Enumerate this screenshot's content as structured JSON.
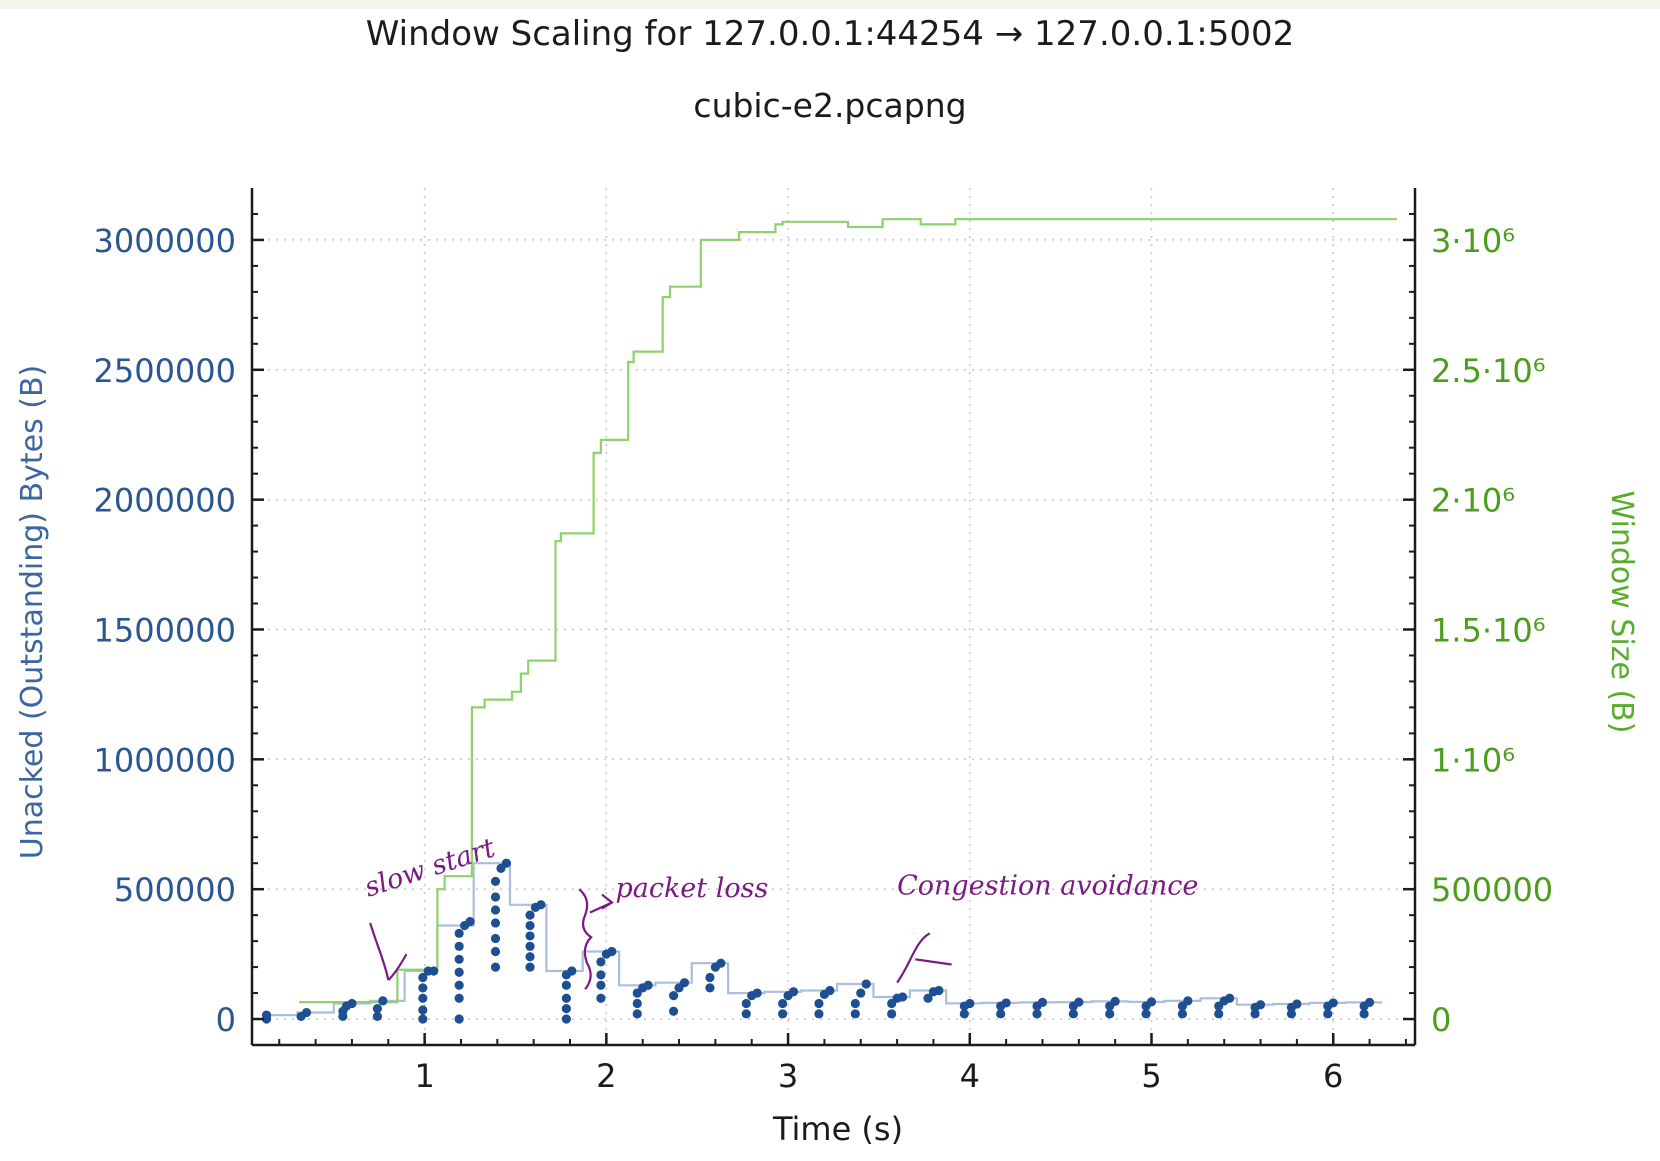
{
  "chart_data": {
    "type": "line",
    "title": "Window Scaling for 127.0.0.1:44254 → 127.0.0.1:5002",
    "subtitle": "cubic-e2.pcapng",
    "xlabel": "Time (s)",
    "ylabel": "Unacked (Outstanding) Bytes (B)",
    "y2label": "Window Size (B)",
    "xlim": [
      0.05,
      6.45
    ],
    "ylim": [
      -100000,
      3200000
    ],
    "xticks": [
      1,
      2,
      3,
      4,
      5,
      6
    ],
    "xtick_labels": [
      "1",
      "2",
      "3",
      "4",
      "5",
      "6"
    ],
    "yticks": [
      0,
      500000,
      1000000,
      1500000,
      2000000,
      2500000,
      3000000
    ],
    "ytick_labels": [
      "0",
      "500000",
      "1000000",
      "1500000",
      "2000000",
      "2500000",
      "3000000"
    ],
    "y2tick_labels": [
      "0",
      "500000",
      "1·10⁶",
      "1.5·10⁶",
      "2·10⁶",
      "2.5·10⁶",
      "3·10⁶"
    ],
    "grid": true,
    "colors": {
      "left_axis": "#2a5791",
      "right_axis": "#4a9e1c",
      "bytes_line": "#a9bfdc",
      "bytes_points": "#1f4f93",
      "window_line": "#8fd16a",
      "annotation": "#7a1a82"
    },
    "series": [
      {
        "axis": "right",
        "style": "step",
        "points": [
          [
            0.31,
            65000
          ],
          [
            0.85,
            65000
          ],
          [
            0.85,
            190000
          ],
          [
            1.07,
            190000
          ],
          [
            1.07,
            500000
          ],
          [
            1.11,
            500000
          ],
          [
            1.11,
            550000
          ],
          [
            1.26,
            550000
          ],
          [
            1.26,
            1200000
          ],
          [
            1.33,
            1200000
          ],
          [
            1.33,
            1230000
          ],
          [
            1.48,
            1230000
          ],
          [
            1.48,
            1260000
          ],
          [
            1.53,
            1260000
          ],
          [
            1.53,
            1330000
          ],
          [
            1.57,
            1330000
          ],
          [
            1.57,
            1380000
          ],
          [
            1.72,
            1380000
          ],
          [
            1.72,
            1840000
          ],
          [
            1.75,
            1840000
          ],
          [
            1.75,
            1870000
          ],
          [
            1.93,
            1870000
          ],
          [
            1.93,
            2180000
          ],
          [
            1.97,
            2180000
          ],
          [
            1.97,
            2230000
          ],
          [
            2.12,
            2230000
          ],
          [
            2.12,
            2530000
          ],
          [
            2.15,
            2530000
          ],
          [
            2.15,
            2570000
          ],
          [
            2.31,
            2570000
          ],
          [
            2.31,
            2780000
          ],
          [
            2.35,
            2780000
          ],
          [
            2.35,
            2820000
          ],
          [
            2.52,
            2820000
          ],
          [
            2.52,
            3000000
          ],
          [
            2.73,
            3000000
          ],
          [
            2.73,
            3030000
          ],
          [
            2.93,
            3030000
          ],
          [
            2.93,
            3060000
          ],
          [
            2.97,
            3060000
          ],
          [
            2.97,
            3070000
          ],
          [
            3.33,
            3070000
          ],
          [
            3.33,
            3050000
          ],
          [
            3.52,
            3050000
          ],
          [
            3.52,
            3080000
          ],
          [
            3.73,
            3080000
          ],
          [
            3.73,
            3060000
          ],
          [
            3.92,
            3060000
          ],
          [
            3.92,
            3080000
          ],
          [
            6.35,
            3080000
          ]
        ]
      },
      {
        "axis": "left",
        "style": "step",
        "points": [
          [
            0.13,
            15000
          ],
          [
            0.3,
            15000
          ],
          [
            0.3,
            25000
          ],
          [
            0.5,
            25000
          ],
          [
            0.5,
            60000
          ],
          [
            0.7,
            60000
          ],
          [
            0.7,
            70000
          ],
          [
            0.89,
            70000
          ],
          [
            0.89,
            185000
          ],
          [
            1.07,
            185000
          ],
          [
            1.07,
            360000
          ],
          [
            1.27,
            360000
          ],
          [
            1.27,
            600000
          ],
          [
            1.47,
            600000
          ],
          [
            1.47,
            440000
          ],
          [
            1.67,
            440000
          ],
          [
            1.67,
            185000
          ],
          [
            1.87,
            185000
          ],
          [
            1.87,
            260000
          ],
          [
            2.07,
            260000
          ],
          [
            2.07,
            130000
          ],
          [
            2.27,
            130000
          ],
          [
            2.27,
            140000
          ],
          [
            2.47,
            140000
          ],
          [
            2.47,
            215000
          ],
          [
            2.67,
            215000
          ],
          [
            2.67,
            100000
          ],
          [
            2.87,
            100000
          ],
          [
            2.87,
            105000
          ],
          [
            3.07,
            105000
          ],
          [
            3.07,
            110000
          ],
          [
            3.27,
            110000
          ],
          [
            3.27,
            135000
          ],
          [
            3.47,
            135000
          ],
          [
            3.47,
            85000
          ],
          [
            3.67,
            85000
          ],
          [
            3.67,
            110000
          ],
          [
            3.87,
            110000
          ],
          [
            3.87,
            60000
          ],
          [
            4.07,
            60000
          ],
          [
            4.07,
            62000
          ],
          [
            4.27,
            62000
          ],
          [
            4.27,
            64000
          ],
          [
            4.47,
            64000
          ],
          [
            4.47,
            65000
          ],
          [
            4.67,
            65000
          ],
          [
            4.67,
            68000
          ],
          [
            4.87,
            68000
          ],
          [
            4.87,
            66000
          ],
          [
            5.07,
            66000
          ],
          [
            5.07,
            70000
          ],
          [
            5.27,
            70000
          ],
          [
            5.27,
            80000
          ],
          [
            5.47,
            80000
          ],
          [
            5.47,
            55000
          ],
          [
            5.67,
            55000
          ],
          [
            5.67,
            58000
          ],
          [
            5.87,
            58000
          ],
          [
            5.87,
            62000
          ],
          [
            6.07,
            62000
          ],
          [
            6.07,
            64000
          ],
          [
            6.27,
            64000
          ]
        ]
      },
      {
        "axis": "left",
        "style": "points",
        "points": [
          [
            0.13,
            0
          ],
          [
            0.13,
            15000
          ],
          [
            0.32,
            10000
          ],
          [
            0.35,
            25000
          ],
          [
            0.55,
            10000
          ],
          [
            0.55,
            30000
          ],
          [
            0.57,
            50000
          ],
          [
            0.6,
            60000
          ],
          [
            0.74,
            10000
          ],
          [
            0.74,
            40000
          ],
          [
            0.77,
            70000
          ],
          [
            0.99,
            0
          ],
          [
            0.99,
            35000
          ],
          [
            0.99,
            80000
          ],
          [
            0.99,
            120000
          ],
          [
            0.99,
            160000
          ],
          [
            1.02,
            185000
          ],
          [
            1.05,
            185000
          ],
          [
            1.19,
            0
          ],
          [
            1.19,
            80000
          ],
          [
            1.19,
            130000
          ],
          [
            1.19,
            180000
          ],
          [
            1.19,
            230000
          ],
          [
            1.19,
            280000
          ],
          [
            1.19,
            330000
          ],
          [
            1.22,
            360000
          ],
          [
            1.25,
            375000
          ],
          [
            1.39,
            200000
          ],
          [
            1.39,
            260000
          ],
          [
            1.39,
            310000
          ],
          [
            1.39,
            370000
          ],
          [
            1.39,
            420000
          ],
          [
            1.39,
            470000
          ],
          [
            1.39,
            530000
          ],
          [
            1.42,
            580000
          ],
          [
            1.45,
            600000
          ],
          [
            1.58,
            200000
          ],
          [
            1.58,
            240000
          ],
          [
            1.58,
            280000
          ],
          [
            1.58,
            320000
          ],
          [
            1.58,
            360000
          ],
          [
            1.58,
            400000
          ],
          [
            1.61,
            430000
          ],
          [
            1.64,
            440000
          ],
          [
            1.78,
            0
          ],
          [
            1.78,
            40000
          ],
          [
            1.78,
            80000
          ],
          [
            1.78,
            130000
          ],
          [
            1.78,
            170000
          ],
          [
            1.81,
            185000
          ],
          [
            1.97,
            80000
          ],
          [
            1.97,
            130000
          ],
          [
            1.97,
            170000
          ],
          [
            1.97,
            220000
          ],
          [
            2.0,
            250000
          ],
          [
            2.03,
            260000
          ],
          [
            2.17,
            20000
          ],
          [
            2.17,
            60000
          ],
          [
            2.17,
            100000
          ],
          [
            2.2,
            120000
          ],
          [
            2.23,
            130000
          ],
          [
            2.37,
            30000
          ],
          [
            2.37,
            90000
          ],
          [
            2.4,
            120000
          ],
          [
            2.43,
            140000
          ],
          [
            2.57,
            120000
          ],
          [
            2.57,
            160000
          ],
          [
            2.6,
            200000
          ],
          [
            2.63,
            215000
          ],
          [
            2.77,
            20000
          ],
          [
            2.77,
            60000
          ],
          [
            2.8,
            90000
          ],
          [
            2.83,
            100000
          ],
          [
            2.97,
            20000
          ],
          [
            2.97,
            60000
          ],
          [
            3.0,
            90000
          ],
          [
            3.03,
            105000
          ],
          [
            3.17,
            20000
          ],
          [
            3.17,
            60000
          ],
          [
            3.2,
            95000
          ],
          [
            3.23,
            110000
          ],
          [
            3.37,
            20000
          ],
          [
            3.37,
            60000
          ],
          [
            3.4,
            100000
          ],
          [
            3.43,
            135000
          ],
          [
            3.57,
            20000
          ],
          [
            3.57,
            60000
          ],
          [
            3.6,
            80000
          ],
          [
            3.63,
            85000
          ],
          [
            3.77,
            80000
          ],
          [
            3.8,
            105000
          ],
          [
            3.83,
            110000
          ],
          [
            3.97,
            20000
          ],
          [
            3.97,
            50000
          ],
          [
            4.0,
            60000
          ],
          [
            4.17,
            20000
          ],
          [
            4.17,
            50000
          ],
          [
            4.2,
            62000
          ],
          [
            4.37,
            20000
          ],
          [
            4.37,
            50000
          ],
          [
            4.4,
            64000
          ],
          [
            4.57,
            20000
          ],
          [
            4.57,
            50000
          ],
          [
            4.6,
            65000
          ],
          [
            4.77,
            20000
          ],
          [
            4.77,
            50000
          ],
          [
            4.8,
            68000
          ],
          [
            4.97,
            20000
          ],
          [
            4.97,
            50000
          ],
          [
            5.0,
            66000
          ],
          [
            5.17,
            20000
          ],
          [
            5.17,
            50000
          ],
          [
            5.2,
            70000
          ],
          [
            5.37,
            20000
          ],
          [
            5.37,
            50000
          ],
          [
            5.4,
            70000
          ],
          [
            5.43,
            80000
          ],
          [
            5.57,
            20000
          ],
          [
            5.57,
            45000
          ],
          [
            5.6,
            55000
          ],
          [
            5.77,
            20000
          ],
          [
            5.77,
            45000
          ],
          [
            5.8,
            58000
          ],
          [
            5.97,
            20000
          ],
          [
            5.97,
            50000
          ],
          [
            6.0,
            62000
          ],
          [
            6.17,
            20000
          ],
          [
            6.17,
            50000
          ],
          [
            6.2,
            64000
          ]
        ]
      }
    ],
    "annotations": [
      {
        "text": "slow start",
        "x": 0.7,
        "y": 470000
      },
      {
        "text": "packet loss",
        "x": 1.9,
        "y": 460000
      },
      {
        "text": "Congestion avoidance",
        "x": 3.7,
        "y": 460000
      }
    ]
  }
}
